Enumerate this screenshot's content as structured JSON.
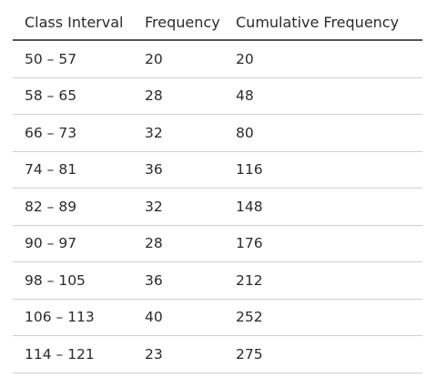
{
  "table": {
    "headers": [
      "Class Interval",
      "Frequency",
      "Cumulative Frequency"
    ],
    "rows": [
      [
        "50 – 57",
        "20",
        "20"
      ],
      [
        "58 – 65",
        "28",
        "48"
      ],
      [
        "66 – 73",
        "32",
        "80"
      ],
      [
        "74 – 81",
        "36",
        "116"
      ],
      [
        "82 – 89",
        "32",
        "148"
      ],
      [
        "90 – 97",
        "28",
        "176"
      ],
      [
        "98 – 105",
        "36",
        "212"
      ],
      [
        "106 – 113",
        "40",
        "252"
      ],
      [
        "114 – 121",
        "23",
        "275"
      ]
    ]
  }
}
